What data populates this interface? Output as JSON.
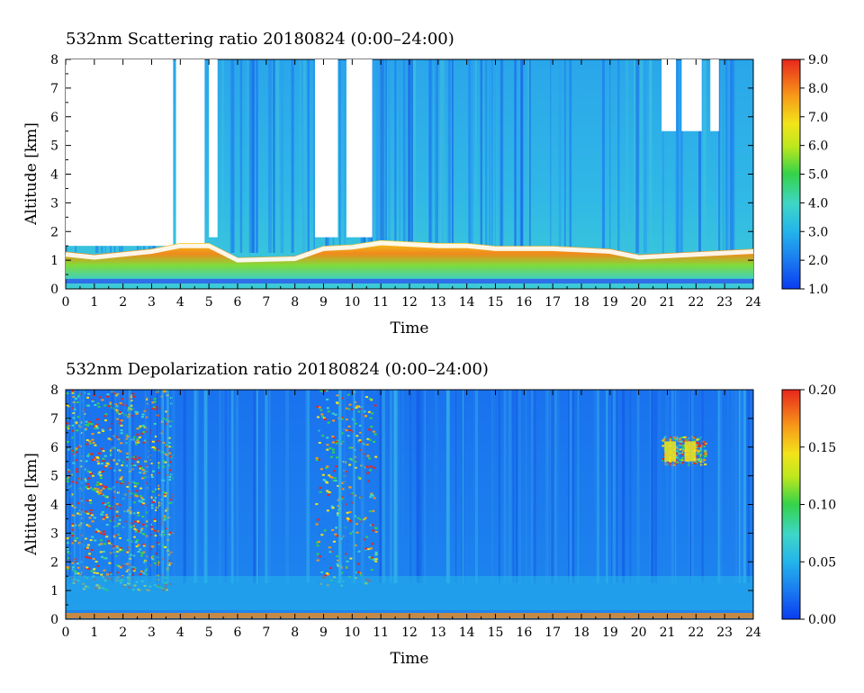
{
  "chart_data": [
    {
      "type": "heatmap",
      "title": "532nm Scattering ratio  20180824 (0:00–24:00)",
      "xlabel": "Time",
      "ylabel": "Altitude [km]",
      "x_ticks": [
        "0",
        "1",
        "2",
        "3",
        "4",
        "5",
        "6",
        "7",
        "8",
        "9",
        "10",
        "11",
        "12",
        "13",
        "14",
        "15",
        "16",
        "17",
        "18",
        "19",
        "20",
        "21",
        "22",
        "23",
        "24"
      ],
      "y_ticks": [
        "0",
        "1",
        "2",
        "3",
        "4",
        "5",
        "6",
        "7",
        "8"
      ],
      "xlim": [
        0,
        24
      ],
      "ylim": [
        0,
        8
      ],
      "colorbar": {
        "ticks": [
          "1.0",
          "2.0",
          "3.0",
          "4.0",
          "5.0",
          "6.0",
          "7.0",
          "8.0",
          "9.0"
        ],
        "range": [
          1.0,
          9.0
        ]
      },
      "features": {
        "boundary_layer_top_km": [
          [
            0,
            1.3
          ],
          [
            1,
            1.2
          ],
          [
            2,
            1.3
          ],
          [
            3,
            1.4
          ],
          [
            4,
            1.6
          ],
          [
            5,
            1.6
          ],
          [
            6,
            1.1
          ],
          [
            8,
            1.15
          ],
          [
            9,
            1.5
          ],
          [
            10,
            1.55
          ],
          [
            11,
            1.7
          ],
          [
            13,
            1.6
          ],
          [
            14,
            1.6
          ],
          [
            15,
            1.5
          ],
          [
            17,
            1.5
          ],
          [
            19,
            1.4
          ],
          [
            20,
            1.2
          ],
          [
            22,
            1.3
          ],
          [
            24,
            1.4
          ]
        ],
        "clear_gaps_hours": [
          [
            0,
            3.75
          ],
          [
            3.85,
            4.85
          ],
          [
            5.0,
            5.3
          ],
          [
            8.7,
            9.5
          ],
          [
            9.8,
            10.7
          ],
          [
            20.8,
            21.3
          ],
          [
            21.5,
            22.2
          ],
          [
            22.5,
            22.8
          ]
        ]
      }
    },
    {
      "type": "heatmap",
      "title": "532nm Depolarization ratio  20180824 (0:00–24:00)",
      "xlabel": "Time",
      "ylabel": "Altitude [km]",
      "x_ticks": [
        "0",
        "1",
        "2",
        "3",
        "4",
        "5",
        "6",
        "7",
        "8",
        "9",
        "10",
        "11",
        "12",
        "13",
        "14",
        "15",
        "16",
        "17",
        "18",
        "19",
        "20",
        "21",
        "22",
        "23",
        "24"
      ],
      "y_ticks": [
        "0",
        "1",
        "2",
        "3",
        "4",
        "5",
        "6",
        "7",
        "8"
      ],
      "xlim": [
        0,
        24
      ],
      "ylim": [
        0,
        8
      ],
      "colorbar": {
        "ticks": [
          "0.00",
          "0.05",
          "0.10",
          "0.15",
          "0.20"
        ],
        "range": [
          0.0,
          0.2
        ]
      },
      "features": {
        "noisy_regions_hours": [
          [
            0,
            3.7
          ],
          [
            8.7,
            10.8
          ],
          [
            20.8,
            22.3
          ]
        ],
        "cloud_layer_km": [
          5.5,
          6.2
        ]
      }
    }
  ]
}
